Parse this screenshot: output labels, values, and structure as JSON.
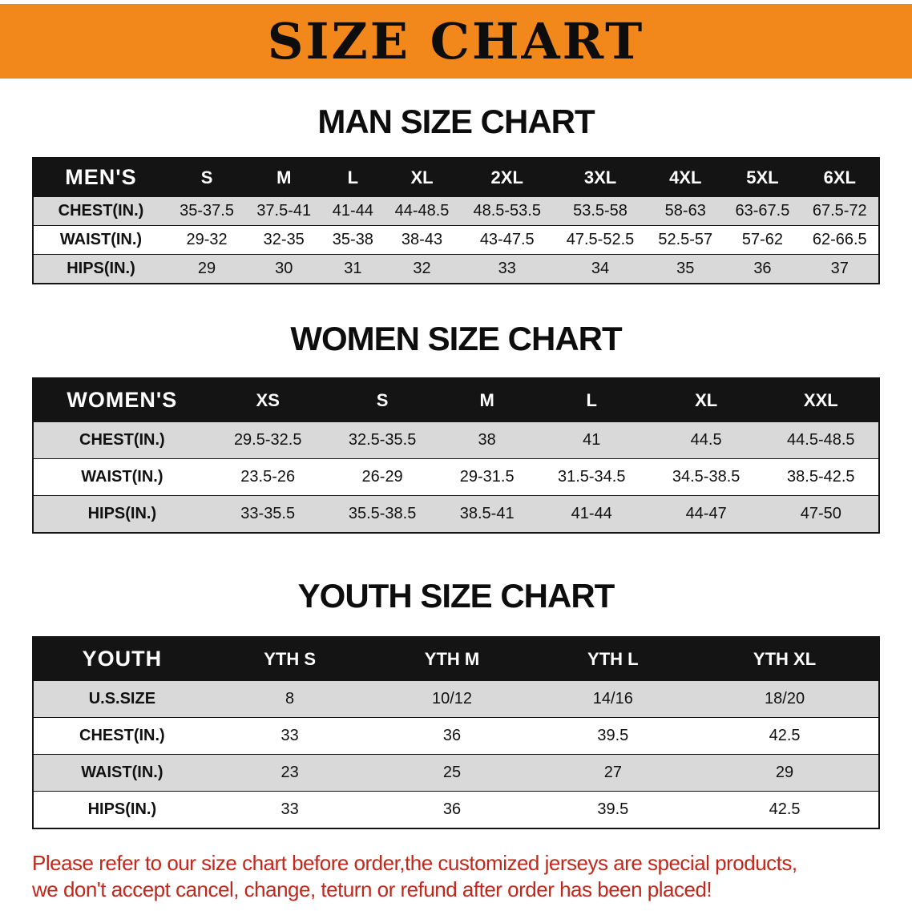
{
  "banner": {
    "title": "SIZE CHART"
  },
  "men": {
    "heading": "MAN SIZE CHART",
    "table": {
      "header": [
        "MEN'S",
        "S",
        "M",
        "L",
        "XL",
        "2XL",
        "3XL",
        "4XL",
        "5XL",
        "6XL"
      ],
      "rows": [
        [
          "CHEST(IN.)",
          "35-37.5",
          "37.5-41",
          "41-44",
          "44-48.5",
          "48.5-53.5",
          "53.5-58",
          "58-63",
          "63-67.5",
          "67.5-72"
        ],
        [
          "WAIST(IN.)",
          "29-32",
          "32-35",
          "35-38",
          "38-43",
          "43-47.5",
          "47.5-52.5",
          "52.5-57",
          "57-62",
          "62-66.5"
        ],
        [
          "HIPS(IN.)",
          "29",
          "30",
          "31",
          "32",
          "33",
          "34",
          "35",
          "36",
          "37"
        ]
      ]
    }
  },
  "women": {
    "heading": "WOMEN SIZE CHART",
    "table": {
      "header": [
        "WOMEN'S",
        "XS",
        "S",
        "M",
        "L",
        "XL",
        "XXL"
      ],
      "rows": [
        [
          "CHEST(IN.)",
          "29.5-32.5",
          "32.5-35.5",
          "38",
          "41",
          "44.5",
          "44.5-48.5"
        ],
        [
          "WAIST(IN.)",
          "23.5-26",
          "26-29",
          "29-31.5",
          "31.5-34.5",
          "34.5-38.5",
          "38.5-42.5"
        ],
        [
          "HIPS(IN.)",
          "33-35.5",
          "35.5-38.5",
          "38.5-41",
          "41-44",
          "44-47",
          "47-50"
        ]
      ]
    }
  },
  "youth": {
    "heading": "YOUTH SIZE CHART",
    "table": {
      "header": [
        "YOUTH",
        "YTH S",
        "YTH M",
        "YTH L",
        "YTH XL"
      ],
      "rows": [
        [
          "U.S.SIZE",
          "8",
          "10/12",
          "14/16",
          "18/20"
        ],
        [
          "CHEST(IN.)",
          "33",
          "36",
          "39.5",
          "42.5"
        ],
        [
          "WAIST(IN.)",
          "23",
          "25",
          "27",
          "29"
        ],
        [
          "HIPS(IN.)",
          "33",
          "36",
          "39.5",
          "42.5"
        ]
      ]
    }
  },
  "disclaimer": {
    "line1": "Please refer to our size chart before order,the customized jerseys are special products,",
    "line2": "we don't accept cancel, change, teturn or refund after order has been placed!"
  },
  "colors": {
    "banner_bg": "#f2871c",
    "header_bg": "#141414",
    "row_alt_bg": "#d9d9d9",
    "row_bg": "#ffffff",
    "title_color": "#0d0d0d",
    "disclaimer_color": "#c1271b"
  }
}
